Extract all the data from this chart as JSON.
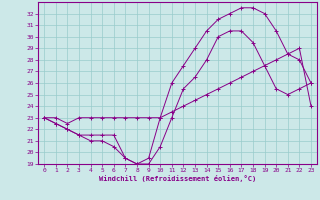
{
  "xlabel": "Windchill (Refroidissement éolien,°C)",
  "bg_color": "#cce8e8",
  "line_color": "#880088",
  "grid_color": "#99cccc",
  "xlim": [
    -0.5,
    23.5
  ],
  "ylim": [
    19,
    33
  ],
  "xticks": [
    0,
    1,
    2,
    3,
    4,
    5,
    6,
    7,
    8,
    9,
    10,
    11,
    12,
    13,
    14,
    15,
    16,
    17,
    18,
    19,
    20,
    21,
    22,
    23
  ],
  "yticks": [
    19,
    20,
    21,
    22,
    23,
    24,
    25,
    26,
    27,
    28,
    29,
    30,
    31,
    32
  ],
  "series": [
    [
      23.0,
      23.0,
      22.5,
      23.0,
      23.0,
      23.0,
      23.0,
      23.0,
      23.0,
      23.0,
      23.0,
      23.5,
      24.0,
      24.5,
      25.0,
      25.5,
      26.0,
      26.5,
      27.0,
      27.5,
      28.0,
      28.5,
      29.0,
      24.0
    ],
    [
      23.0,
      22.5,
      22.0,
      21.5,
      21.0,
      21.0,
      20.5,
      19.5,
      19.0,
      19.0,
      20.5,
      23.0,
      25.5,
      26.5,
      28.0,
      30.0,
      30.5,
      30.5,
      29.5,
      27.5,
      25.5,
      25.0,
      25.5,
      26.0
    ],
    [
      23.0,
      22.5,
      22.0,
      21.5,
      21.5,
      21.5,
      21.5,
      19.5,
      19.0,
      19.5,
      23.0,
      26.0,
      27.5,
      29.0,
      30.5,
      31.5,
      32.0,
      32.5,
      32.5,
      32.0,
      30.5,
      28.5,
      28.0,
      26.0
    ]
  ]
}
